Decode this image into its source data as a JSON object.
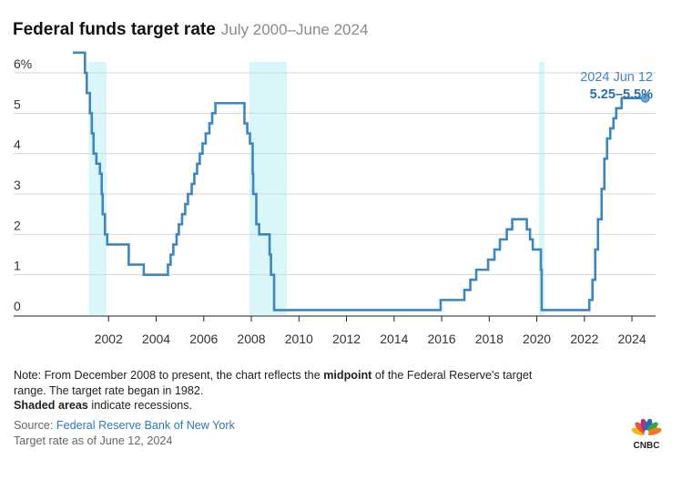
{
  "title": "Federal funds target rate",
  "subtitle": "July 2000–June 2024",
  "notes": {
    "line1_pre": "Note: From December 2008 to present, the chart reflects the ",
    "line1_bold": "midpoint",
    "line1_post": " of the Federal Reserve's target",
    "line2": "range. The target rate began in 1982.",
    "line3_bold": "Shaded areas",
    "line3_post": " indicate recessions."
  },
  "source": {
    "label": "Source: ",
    "link_text": "Federal Reserve Bank of New York",
    "asof": "Target rate as of June 12, 2024"
  },
  "logo_text": "CNBC",
  "colors": {
    "line": "#3d86bf",
    "recession": "#d9f6fb",
    "grid": "#d6d6d6",
    "annotation_date": "#3d86bf",
    "annotation_value": "#2a6fa8"
  },
  "chart_data": {
    "type": "line",
    "title": "Federal funds target rate",
    "subtitle": "July 2000–June 2024",
    "x_range": [
      "2000-07-01",
      "2024-06-30"
    ],
    "ylim": [
      0,
      6.5
    ],
    "y_tick_labels": [
      "0",
      "1",
      "2",
      "3",
      "4",
      "5",
      "6%"
    ],
    "y_tick_values": [
      0,
      1,
      2,
      3,
      4,
      5,
      6
    ],
    "x_tick_labels": [
      "2002",
      "2004",
      "2006",
      "2008",
      "2010",
      "2012",
      "2014",
      "2016",
      "2018",
      "2020",
      "2022",
      "2024"
    ],
    "grid": true,
    "recessions": [
      {
        "start": "2001-03-01",
        "end": "2001-11-30"
      },
      {
        "start": "2007-12-01",
        "end": "2009-06-30"
      },
      {
        "start": "2020-02-01",
        "end": "2020-04-30"
      }
    ],
    "series": [
      {
        "values": [
          [
            "2000-07-01",
            6.5
          ],
          [
            "2001-01-03",
            6.0
          ],
          [
            "2001-01-31",
            5.5
          ],
          [
            "2001-03-20",
            5.0
          ],
          [
            "2001-04-18",
            4.5
          ],
          [
            "2001-05-15",
            4.0
          ],
          [
            "2001-06-27",
            3.75
          ],
          [
            "2001-08-21",
            3.5
          ],
          [
            "2001-09-17",
            3.0
          ],
          [
            "2001-10-02",
            2.5
          ],
          [
            "2001-11-06",
            2.0
          ],
          [
            "2001-12-11",
            1.75
          ],
          [
            "2002-11-06",
            1.25
          ],
          [
            "2003-06-25",
            1.0
          ],
          [
            "2004-06-30",
            1.25
          ],
          [
            "2004-08-10",
            1.5
          ],
          [
            "2004-09-21",
            1.75
          ],
          [
            "2004-11-10",
            2.0
          ],
          [
            "2004-12-14",
            2.25
          ],
          [
            "2005-02-02",
            2.5
          ],
          [
            "2005-03-22",
            2.75
          ],
          [
            "2005-05-03",
            3.0
          ],
          [
            "2005-06-30",
            3.25
          ],
          [
            "2005-08-09",
            3.5
          ],
          [
            "2005-09-20",
            3.75
          ],
          [
            "2005-11-01",
            4.0
          ],
          [
            "2005-12-13",
            4.25
          ],
          [
            "2006-01-31",
            4.5
          ],
          [
            "2006-03-28",
            4.75
          ],
          [
            "2006-05-10",
            5.0
          ],
          [
            "2006-06-29",
            5.25
          ],
          [
            "2007-09-18",
            4.75
          ],
          [
            "2007-10-31",
            4.5
          ],
          [
            "2007-12-11",
            4.25
          ],
          [
            "2008-01-22",
            3.5
          ],
          [
            "2008-01-30",
            3.0
          ],
          [
            "2008-03-18",
            2.25
          ],
          [
            "2008-04-30",
            2.0
          ],
          [
            "2008-10-08",
            1.5
          ],
          [
            "2008-10-29",
            1.0
          ],
          [
            "2008-12-16",
            0.125
          ],
          [
            "2015-12-17",
            0.375
          ],
          [
            "2016-12-15",
            0.625
          ],
          [
            "2017-03-16",
            0.875
          ],
          [
            "2017-06-15",
            1.125
          ],
          [
            "2017-12-14",
            1.375
          ],
          [
            "2018-03-22",
            1.625
          ],
          [
            "2018-06-14",
            1.875
          ],
          [
            "2018-09-27",
            2.125
          ],
          [
            "2018-12-20",
            2.375
          ],
          [
            "2019-08-01",
            2.125
          ],
          [
            "2019-09-19",
            1.875
          ],
          [
            "2019-10-31",
            1.625
          ],
          [
            "2020-03-04",
            1.125
          ],
          [
            "2020-03-16",
            0.125
          ],
          [
            "2022-03-17",
            0.375
          ],
          [
            "2022-05-05",
            0.875
          ],
          [
            "2022-06-16",
            1.625
          ],
          [
            "2022-07-28",
            2.375
          ],
          [
            "2022-09-22",
            3.125
          ],
          [
            "2022-11-03",
            3.875
          ],
          [
            "2022-12-15",
            4.375
          ],
          [
            "2023-02-02",
            4.625
          ],
          [
            "2023-03-23",
            4.875
          ],
          [
            "2023-05-04",
            5.125
          ],
          [
            "2023-07-27",
            5.375
          ],
          [
            "2024-06-12",
            5.375
          ]
        ]
      }
    ],
    "annotation": {
      "date": "2024-06-12",
      "value": 5.375,
      "label_date": "2024 Jun 12",
      "label_value": "5.25–5.5%"
    }
  }
}
